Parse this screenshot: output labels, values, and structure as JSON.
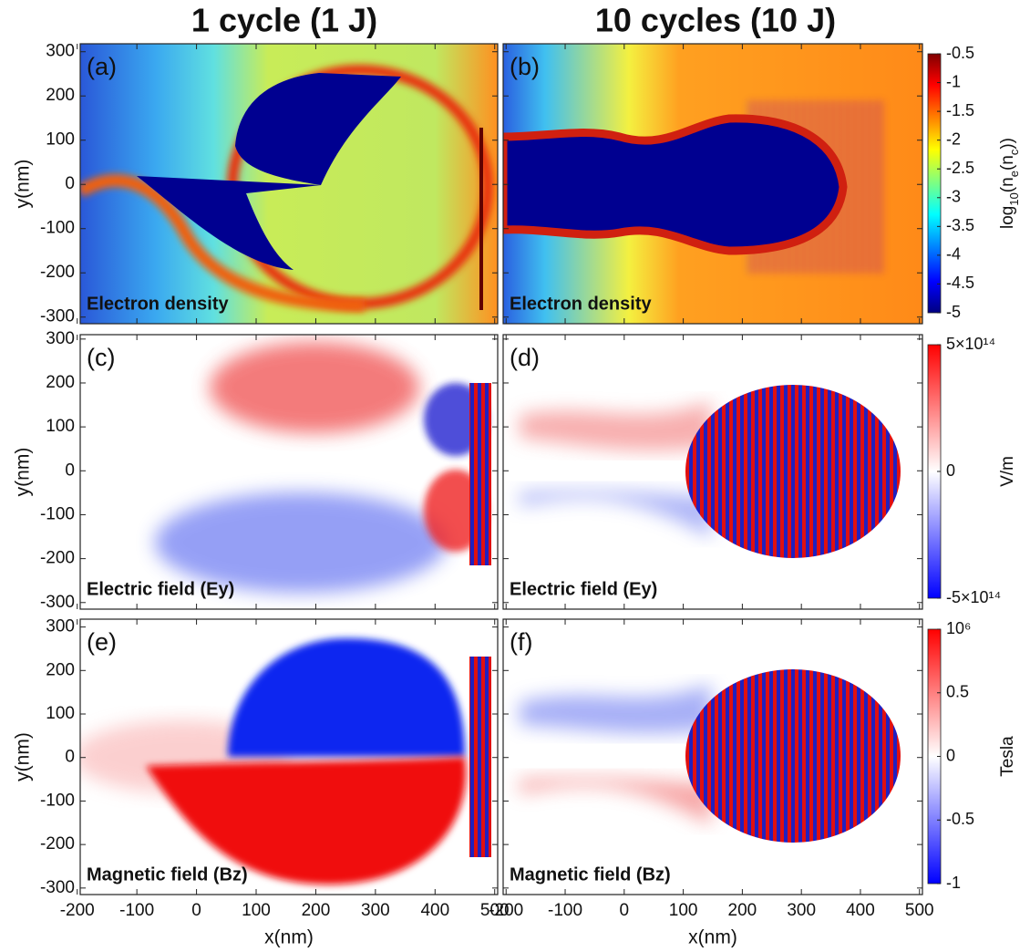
{
  "figure": {
    "column_titles": [
      "1 cycle (1 J)",
      "10 cycles (10 J)"
    ]
  },
  "chart_data": [
    {
      "type": "heatmap",
      "panel_label": "(a)",
      "annotation": "Electron density",
      "ylabel": "y(nm)",
      "xlim": [
        -195,
        505
      ],
      "xticks": [
        -200,
        -100,
        0,
        100,
        200,
        300,
        400,
        500
      ],
      "ylim": [
        -315,
        318
      ],
      "yticks": [
        -300,
        -200,
        -100,
        0,
        100,
        200,
        300
      ]
    },
    {
      "type": "heatmap",
      "panel_label": "(b)",
      "annotation": "Electron density",
      "xlim": [
        -205,
        505
      ],
      "xticks": [
        -200,
        -100,
        0,
        100,
        200,
        300,
        400,
        500
      ],
      "ylim": [
        -315,
        318
      ],
      "yticks": [
        -300,
        -200,
        -100,
        0,
        100,
        200,
        300
      ],
      "colorbar": {
        "colormap": "jet",
        "clim": [
          -5,
          -0.5
        ],
        "ticks": [
          -5,
          -4.5,
          -4,
          -3.5,
          -3,
          -2.5,
          -2,
          -1.5,
          -1,
          -0.5
        ],
        "label_parts": [
          "log",
          "10",
          "(n",
          "e",
          "(n",
          "c",
          "))"
        ]
      }
    },
    {
      "type": "heatmap",
      "panel_label": "(c)",
      "annotation": "Electric ﬁeld (Ey)",
      "ylabel": "y(nm)",
      "xlim": [
        -195,
        505
      ],
      "xticks": [
        -200,
        -100,
        0,
        100,
        200,
        300,
        400,
        500
      ],
      "ylim": [
        -315,
        310
      ],
      "yticks": [
        -300,
        -200,
        -100,
        0,
        100,
        200,
        300
      ]
    },
    {
      "type": "heatmap",
      "panel_label": "(d)",
      "annotation": "Electric ﬁeld (Ey)",
      "xlim": [
        -205,
        505
      ],
      "xticks": [
        -200,
        -100,
        0,
        100,
        200,
        300,
        400,
        500
      ],
      "ylim": [
        -315,
        310
      ],
      "yticks": [
        -300,
        -200,
        -100,
        0,
        100,
        200,
        300
      ],
      "colorbar": {
        "colormap": "bwr",
        "clim": [
          -500000000000000,
          500000000000000
        ],
        "ticks": [
          {
            "value": -500000000000000,
            "label": "-5×10¹⁴"
          },
          0,
          {
            "value": 500000000000000,
            "label": "5×10¹⁴"
          }
        ],
        "label": "V/m"
      }
    },
    {
      "type": "heatmap",
      "panel_label": "(e)",
      "annotation": "Magnetic ﬁeld (Bz)",
      "ylabel": "y(nm)",
      "xlabel": "x(nm)",
      "xlim": [
        -195,
        505
      ],
      "xticks": [
        -200,
        -100,
        0,
        100,
        200,
        300,
        400,
        500
      ],
      "ylim": [
        -315,
        318
      ],
      "yticks": [
        -300,
        -200,
        -100,
        0,
        100,
        200,
        300
      ]
    },
    {
      "type": "heatmap",
      "panel_label": "(f)",
      "annotation": "Magnetic ﬁeld (Bz)",
      "xlabel": "x(nm)",
      "xlim": [
        -205,
        505
      ],
      "xticks": [
        -200,
        -100,
        0,
        100,
        200,
        300,
        400,
        500
      ],
      "ylim": [
        -315,
        318
      ],
      "yticks": [
        -300,
        -200,
        -100,
        0,
        100,
        200,
        300
      ],
      "colorbar": {
        "colormap": "bwr",
        "clim": [
          -1,
          1
        ],
        "ticks": [
          -1,
          -0.5,
          0,
          0.5,
          {
            "value": 1,
            "label": "10⁶"
          }
        ],
        "label": "Tesla"
      }
    }
  ]
}
